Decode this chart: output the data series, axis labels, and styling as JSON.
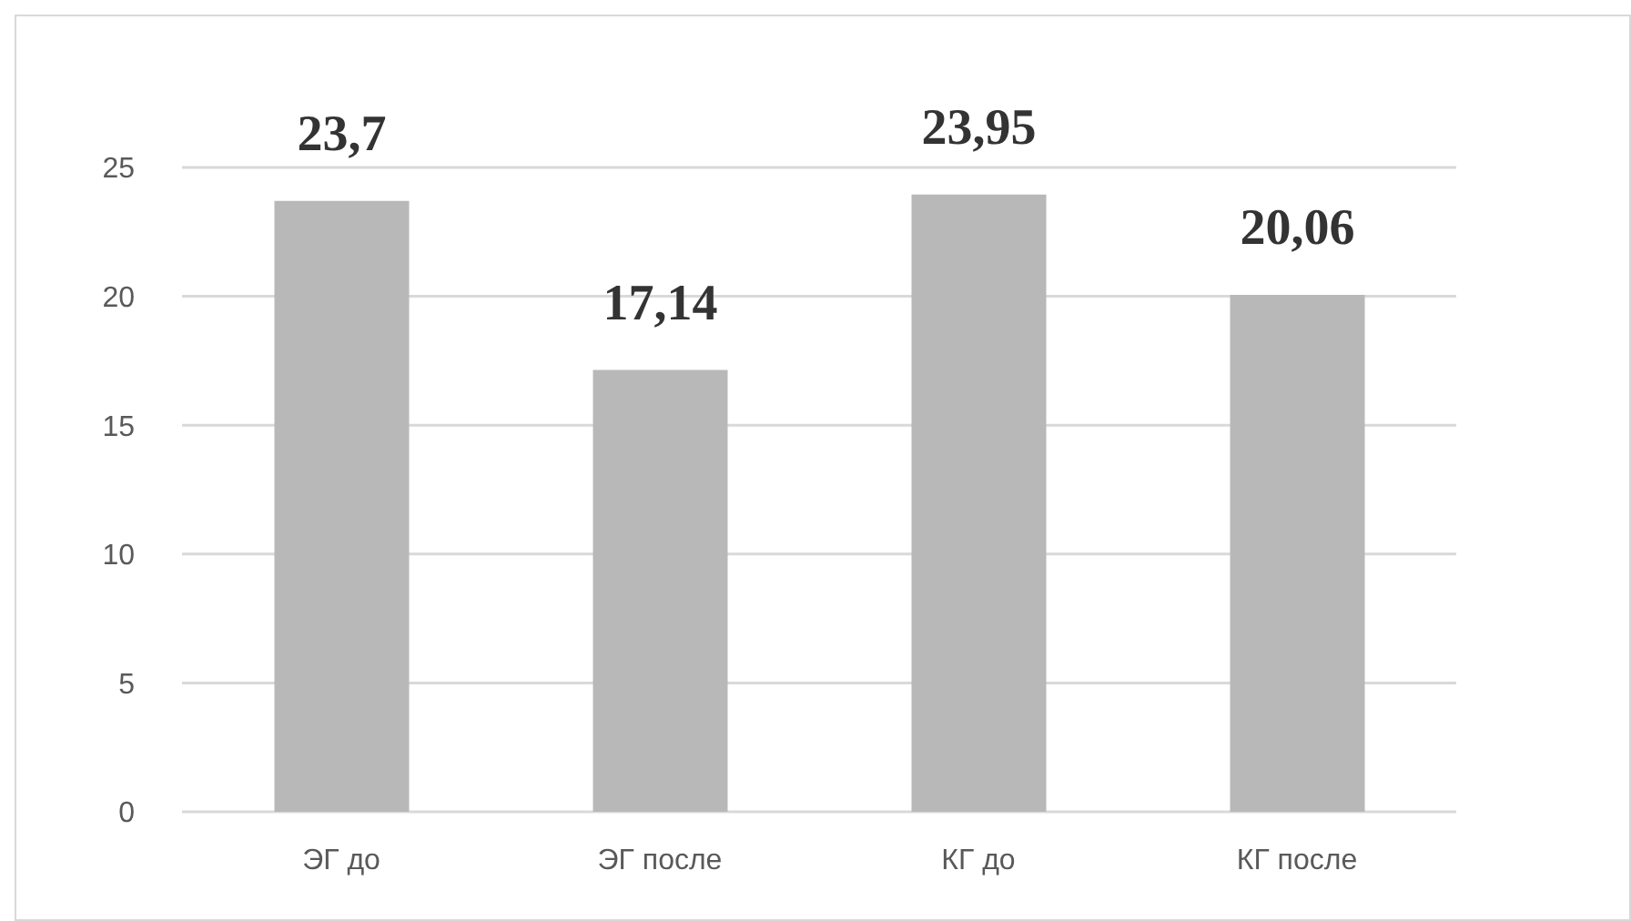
{
  "chart_data": {
    "type": "bar",
    "categories": [
      "ЭГ до",
      "ЭГ после",
      "КГ до",
      "КГ после"
    ],
    "values": [
      23.7,
      17.14,
      23.95,
      20.06
    ],
    "value_labels": [
      "23,7",
      "17,14",
      "23,95",
      "20,06"
    ],
    "color": "#b8b8b8",
    "ylim": [
      0,
      25
    ],
    "yticks": [
      0,
      5,
      10,
      15,
      20,
      25
    ],
    "grid": "y"
  }
}
